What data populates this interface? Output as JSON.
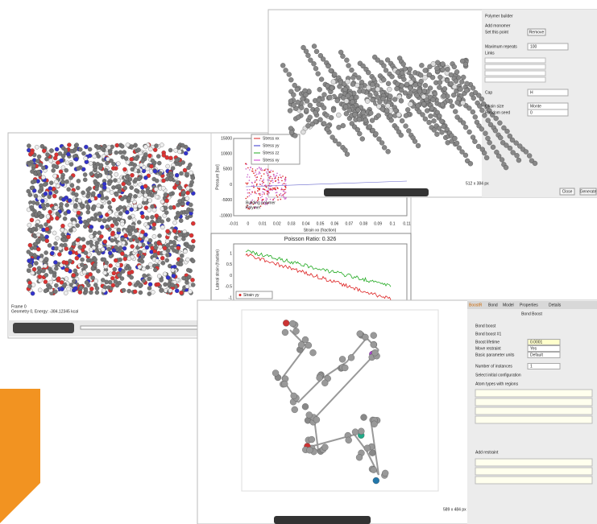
{
  "viewer_window": {
    "status_lines": [
      "Frame 0",
      "Geometry 0, Energy: -384.12345 kcal"
    ],
    "stress_plot": {
      "legend": [
        "Stress xx",
        "Stress yy",
        "Stress zz",
        "Stress xy"
      ],
      "y_label": "Pressure [bar]",
      "x_label": "Strain xx (fraction)",
      "ytick_labels": [
        "15000",
        "10000",
        "5000",
        "0",
        "-5000",
        "-10000"
      ],
      "xtick_labels": [
        "-0.01",
        "0",
        "0.01",
        "0.02",
        "0.03",
        "0.04",
        "0.05",
        "0.06",
        "0.07",
        "0.08",
        "0.09",
        "0.1",
        "0.11"
      ],
      "note": [
        "Building polymer",
        "Polymer"
      ]
    },
    "poisson_plot": {
      "title": "Poisson Ratio: 0.326",
      "y_label": "Lateral strain (fraction)",
      "ytick_labels": [
        "1",
        "0.5",
        "0",
        "-0.5",
        "-1"
      ],
      "legend": [
        "Strain yy"
      ]
    }
  },
  "polymer_builder": {
    "title": "Polymer builder",
    "rows": [
      "Add monomer",
      "Set this point",
      "Maximum repeats",
      "Links",
      "Cap",
      "Chain size",
      "Random seed"
    ],
    "buttons": [
      "Remove",
      "Close",
      "Generate"
    ],
    "fields": [
      "100",
      "H",
      "Monte",
      "0"
    ],
    "footer": "512 x 384 px"
  },
  "bond_boost": {
    "tabs": [
      "BoostR",
      "Bond",
      "Model",
      "Properties",
      "Details"
    ],
    "header": "Bond Boost",
    "rows": [
      "Bond boost",
      "Bond boost #1",
      "Boost lifetime",
      "Move restraint",
      "Basic parameter units",
      "Number of instances",
      "Select initial configuration",
      "Atom types with regions",
      "Add restraint"
    ],
    "fields": [
      "0.0001",
      "Yes",
      "Default",
      "1"
    ],
    "footer": "589 x 484 px"
  }
}
